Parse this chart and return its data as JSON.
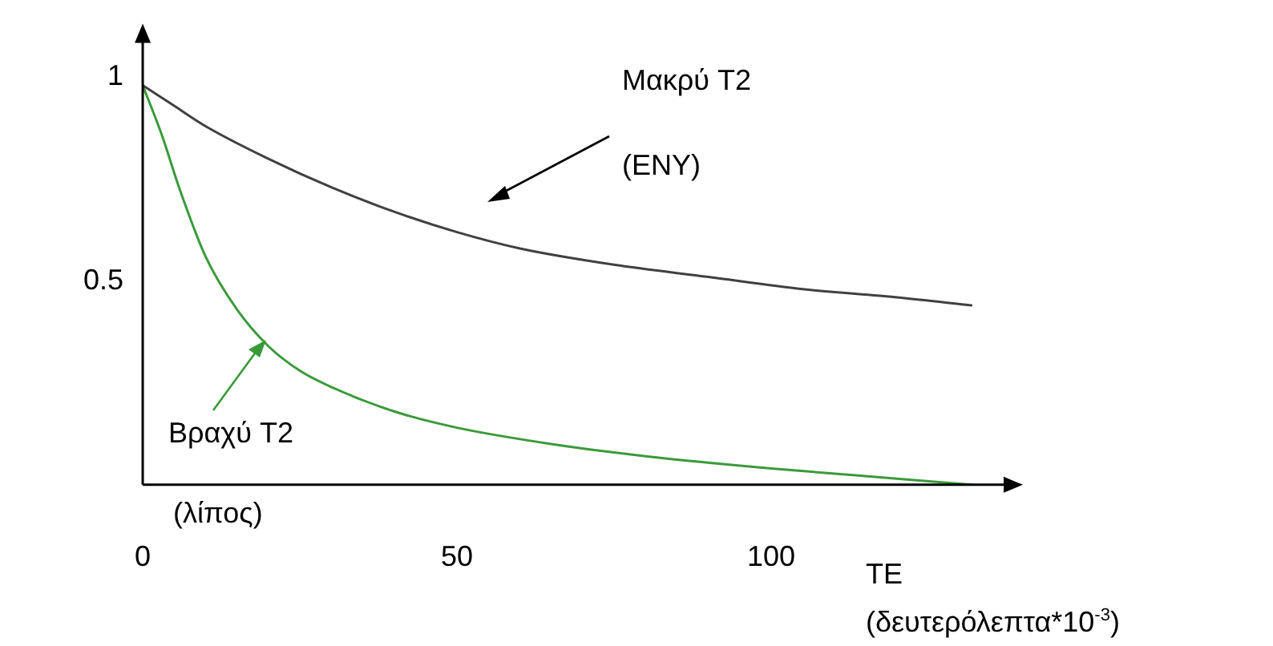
{
  "chart_data": {
    "type": "line",
    "xlabel": "TE (δευτερόλεπτα*10$^{-3}$)",
    "xlim": [
      0,
      138
    ],
    "ylim": [
      0,
      1.1
    ],
    "xticks": [
      0,
      50,
      100
    ],
    "yticks": [
      0.5,
      1
    ],
    "grid": false,
    "legend": false,
    "marker": "none",
    "series": [
      {
        "color": "#404040",
        "x": [
          0,
          5,
          10,
          20,
          30,
          40,
          50,
          60,
          75,
          90,
          105,
          120,
          132
        ],
        "values": [
          0.98,
          0.93,
          0.88,
          0.8,
          0.73,
          0.67,
          0.62,
          0.58,
          0.54,
          0.51,
          0.48,
          0.46,
          0.44
        ]
      },
      {
        "color": "#3a9a3a",
        "x": [
          0,
          3,
          6,
          10,
          15,
          20,
          25,
          30,
          40,
          50,
          65,
          80,
          100,
          120,
          132
        ],
        "values": [
          0.98,
          0.86,
          0.72,
          0.56,
          0.43,
          0.34,
          0.28,
          0.24,
          0.18,
          0.14,
          0.1,
          0.07,
          0.04,
          0.015,
          0
        ]
      }
    ],
    "annotations": [
      "Μακρύ T2",
      "(ENY)",
      "Βραχύ T2",
      "(λίπος)"
    ]
  }
}
